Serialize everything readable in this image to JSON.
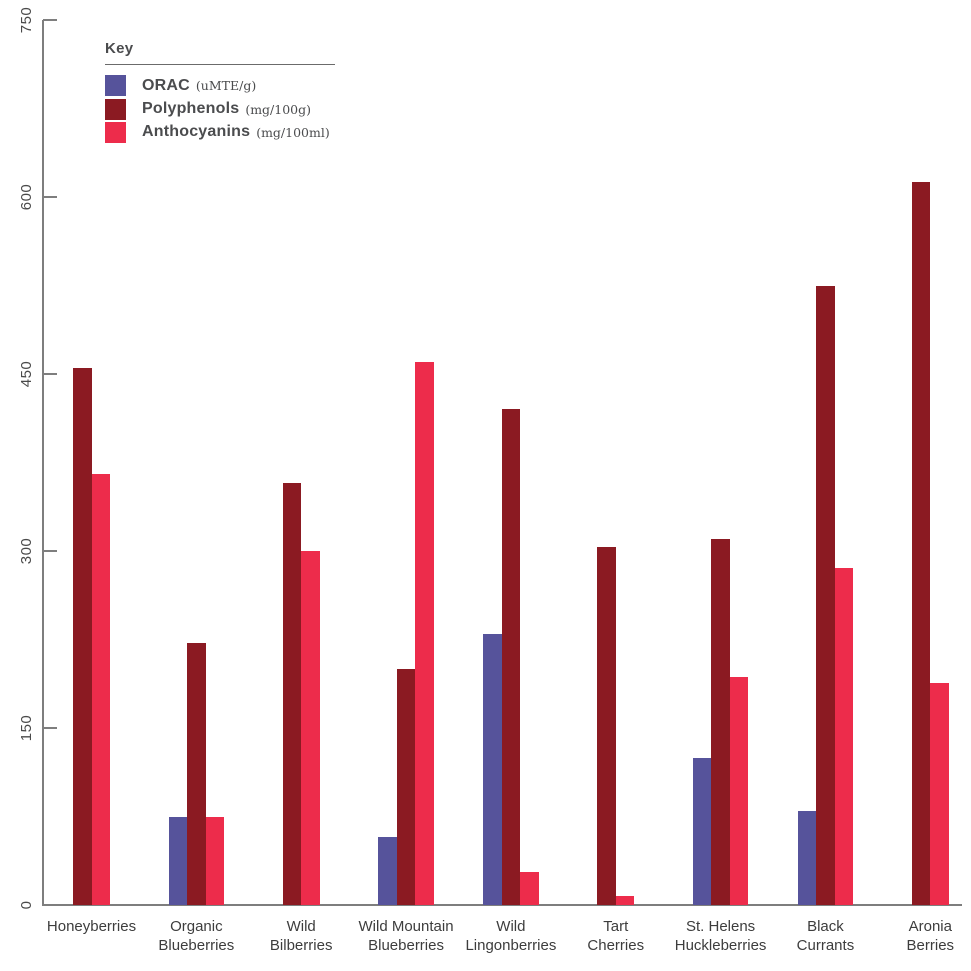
{
  "chart_data": {
    "type": "bar",
    "title": "",
    "legend": {
      "title": "Key",
      "position": "top-left"
    },
    "categories": [
      "Honeyberries",
      "Organic Blueberries",
      "Wild Bilberries",
      "Wild Mountain Blueberries",
      "Wild Lingonberries",
      "Tart Cherries",
      "St. Helens Huckleberries",
      "Black Currants",
      "Aronia Berries"
    ],
    "category_lines": [
      [
        "Honeyberries"
      ],
      [
        "Organic",
        "Blueberries"
      ],
      [
        "Wild",
        "Bilberries"
      ],
      [
        "Wild Mountain",
        "Blueberries"
      ],
      [
        "Wild",
        "Lingonberries"
      ],
      [
        "Tart",
        "Cherries"
      ],
      [
        "St. Helens",
        "Huckleberries"
      ],
      [
        "Black",
        "Currants"
      ],
      [
        "Aronia",
        "Berries"
      ]
    ],
    "series": [
      {
        "name": "ORAC",
        "unit": "(uMTE/g)",
        "color": "#56539B",
        "values": [
          null,
          75,
          null,
          58,
          230,
          null,
          125,
          80,
          null
        ]
      },
      {
        "name": "Polyphenols",
        "unit": "(mg/100g)",
        "color": "#8B1A22",
        "values": [
          455,
          222,
          358,
          200,
          420,
          303,
          310,
          525,
          613
        ]
      },
      {
        "name": "Anthocyanins",
        "unit": "(mg/100ml)",
        "color": "#ED2C4B",
        "values": [
          365,
          75,
          300,
          460,
          28,
          8,
          193,
          286,
          188
        ]
      }
    ],
    "y_ticks": [
      0,
      150,
      300,
      450,
      600,
      750
    ],
    "ylim": [
      0,
      750
    ],
    "grid": false,
    "axis_color": "#7E7E7E",
    "tick_label_color": "#4A4A4A",
    "category_label_color": "#3D3D3D"
  }
}
